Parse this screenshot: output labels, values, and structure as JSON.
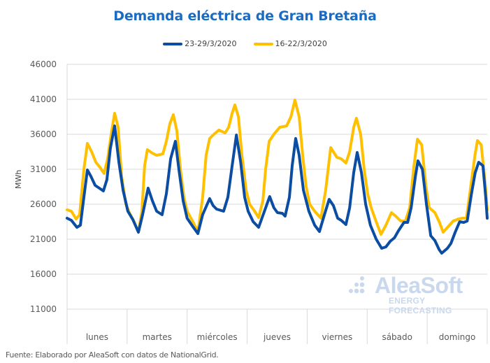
{
  "chart_data": {
    "type": "line",
    "title": "Demanda eléctrica de Gran Bretaña",
    "xlabel": "",
    "ylabel": "MWh",
    "ylim": [
      6000,
      46000
    ],
    "yticks": [
      11000,
      16000,
      21000,
      26000,
      31000,
      36000,
      41000,
      46000
    ],
    "ytick_labels": [
      "11000",
      "16000",
      "21000",
      "26000",
      "31000",
      "36000",
      "41000",
      "46000"
    ],
    "categories": [
      "lunes",
      "martes",
      "miércoles",
      "jueves",
      "viernes",
      "sábado",
      "domingo"
    ],
    "x_unit": "hour of week",
    "xlim": [
      0,
      168
    ],
    "grid": true,
    "legend_position": "top",
    "series": [
      {
        "name": "23-29/3/2020",
        "color": "#0b4da2",
        "points": [
          [
            0,
            24000
          ],
          [
            1.7,
            23700
          ],
          [
            3.9,
            22700
          ],
          [
            5.3,
            23000
          ],
          [
            6.7,
            27000
          ],
          [
            8.1,
            30900
          ],
          [
            9.5,
            30000
          ],
          [
            11.2,
            28700
          ],
          [
            12.9,
            28300
          ],
          [
            14.5,
            27900
          ],
          [
            15.9,
            29500
          ],
          [
            17.3,
            34000
          ],
          [
            19,
            37200
          ],
          [
            20.7,
            32000
          ],
          [
            22.4,
            28000
          ],
          [
            24.3,
            25000
          ],
          [
            26.3,
            23800
          ],
          [
            28.5,
            22000
          ],
          [
            30.2,
            24500
          ],
          [
            32.4,
            28300
          ],
          [
            34.1,
            26500
          ],
          [
            35.8,
            25000
          ],
          [
            38,
            24500
          ],
          [
            39.7,
            27500
          ],
          [
            41.4,
            32500
          ],
          [
            43.3,
            35000
          ],
          [
            44.7,
            31000
          ],
          [
            46.4,
            26500
          ],
          [
            48,
            24000
          ],
          [
            50.3,
            22800
          ],
          [
            52.3,
            21800
          ],
          [
            54.2,
            24500
          ],
          [
            57,
            26800
          ],
          [
            58.4,
            25800
          ],
          [
            59.8,
            25300
          ],
          [
            62.6,
            25000
          ],
          [
            64.3,
            27000
          ],
          [
            66,
            31500
          ],
          [
            67.7,
            35900
          ],
          [
            69.4,
            32000
          ],
          [
            71,
            27000
          ],
          [
            72.4,
            25000
          ],
          [
            74.4,
            23500
          ],
          [
            76.6,
            22700
          ],
          [
            78.9,
            25000
          ],
          [
            81,
            27100
          ],
          [
            82.7,
            25500
          ],
          [
            84.1,
            24800
          ],
          [
            86.1,
            24700
          ],
          [
            87.2,
            24300
          ],
          [
            88.9,
            27000
          ],
          [
            90,
            31500
          ],
          [
            91.4,
            35400
          ],
          [
            92.8,
            33000
          ],
          [
            94.5,
            28000
          ],
          [
            96.7,
            25000
          ],
          [
            99,
            23000
          ],
          [
            100.9,
            22100
          ],
          [
            102.9,
            24500
          ],
          [
            104.8,
            26700
          ],
          [
            106.5,
            25800
          ],
          [
            108.2,
            24000
          ],
          [
            109.6,
            23700
          ],
          [
            111.5,
            23100
          ],
          [
            113,
            25500
          ],
          [
            114.6,
            30500
          ],
          [
            116,
            33400
          ],
          [
            117.7,
            30500
          ],
          [
            119.4,
            26000
          ],
          [
            121.3,
            23000
          ],
          [
            123.6,
            21000
          ],
          [
            125.8,
            19700
          ],
          [
            127.5,
            19900
          ],
          [
            129.2,
            20700
          ],
          [
            130.9,
            21200
          ],
          [
            132.5,
            22200
          ],
          [
            134.7,
            23400
          ],
          [
            136.2,
            23400
          ],
          [
            137.6,
            25500
          ],
          [
            139.3,
            30000
          ],
          [
            140.3,
            32200
          ],
          [
            142.1,
            31000
          ],
          [
            143.7,
            26000
          ],
          [
            145.4,
            21500
          ],
          [
            147.1,
            20800
          ],
          [
            148.8,
            19500
          ],
          [
            149.8,
            19000
          ],
          [
            152.1,
            19700
          ],
          [
            153.5,
            20400
          ],
          [
            155.2,
            22000
          ],
          [
            157,
            23500
          ],
          [
            158.6,
            23400
          ],
          [
            160,
            23600
          ],
          [
            161.7,
            27500
          ],
          [
            163.2,
            30500
          ],
          [
            164.6,
            32000
          ],
          [
            166.3,
            31500
          ],
          [
            167.4,
            27000
          ],
          [
            168,
            24000
          ]
        ]
      },
      {
        "name": "16-22/3/2020",
        "color": "#ffc000",
        "points": [
          [
            0,
            25200
          ],
          [
            1.7,
            25000
          ],
          [
            3.6,
            23900
          ],
          [
            5,
            24500
          ],
          [
            6.7,
            31000
          ],
          [
            8.1,
            34700
          ],
          [
            9.8,
            33500
          ],
          [
            11.5,
            32000
          ],
          [
            13.1,
            31300
          ],
          [
            14.8,
            30400
          ],
          [
            16.2,
            32500
          ],
          [
            17.6,
            36000
          ],
          [
            19,
            39000
          ],
          [
            20.4,
            37000
          ],
          [
            21.8,
            30000
          ],
          [
            23.5,
            26000
          ],
          [
            24.9,
            24800
          ],
          [
            26.8,
            23500
          ],
          [
            28.5,
            22000
          ],
          [
            29.9,
            25000
          ],
          [
            31,
            31500
          ],
          [
            32.1,
            33800
          ],
          [
            34.1,
            33300
          ],
          [
            35.8,
            33000
          ],
          [
            38.3,
            33200
          ],
          [
            39.7,
            35000
          ],
          [
            41.1,
            37500
          ],
          [
            42.5,
            38800
          ],
          [
            43.9,
            36500
          ],
          [
            45.3,
            31000
          ],
          [
            46.7,
            27000
          ],
          [
            48,
            25000
          ],
          [
            50.3,
            23500
          ],
          [
            52.3,
            22000
          ],
          [
            54.2,
            27000
          ],
          [
            55.6,
            33000
          ],
          [
            57,
            35400
          ],
          [
            58.7,
            36000
          ],
          [
            60.7,
            36600
          ],
          [
            63.2,
            36200
          ],
          [
            64.6,
            37000
          ],
          [
            66,
            39000
          ],
          [
            67.1,
            40200
          ],
          [
            68.5,
            38500
          ],
          [
            69.9,
            33000
          ],
          [
            71.6,
            28000
          ],
          [
            73,
            26000
          ],
          [
            75,
            25000
          ],
          [
            76.6,
            24100
          ],
          [
            78.3,
            26500
          ],
          [
            79.4,
            31000
          ],
          [
            80.8,
            35000
          ],
          [
            82.7,
            36000
          ],
          [
            85,
            37000
          ],
          [
            87.8,
            37200
          ],
          [
            89.5,
            38500
          ],
          [
            91.1,
            40900
          ],
          [
            92.8,
            38500
          ],
          [
            94.2,
            33000
          ],
          [
            95.6,
            28500
          ],
          [
            97,
            26000
          ],
          [
            99,
            25000
          ],
          [
            101.5,
            24000
          ],
          [
            103.4,
            28000
          ],
          [
            105.4,
            34100
          ],
          [
            107.9,
            32700
          ],
          [
            109.6,
            32500
          ],
          [
            111.5,
            31900
          ],
          [
            113,
            33500
          ],
          [
            114.6,
            37000
          ],
          [
            115.7,
            38300
          ],
          [
            117.4,
            36000
          ],
          [
            118.8,
            31000
          ],
          [
            120.2,
            27500
          ],
          [
            121.6,
            25500
          ],
          [
            123.6,
            23500
          ],
          [
            125.5,
            21700
          ],
          [
            127.5,
            23000
          ],
          [
            129.7,
            24800
          ],
          [
            131.4,
            24300
          ],
          [
            133.4,
            23600
          ],
          [
            135.3,
            23600
          ],
          [
            137,
            25500
          ],
          [
            138.7,
            31500
          ],
          [
            140.1,
            35300
          ],
          [
            141.8,
            34500
          ],
          [
            143.5,
            28500
          ],
          [
            144.8,
            25500
          ],
          [
            147.1,
            24800
          ],
          [
            148.8,
            23500
          ],
          [
            150.4,
            22000
          ],
          [
            152.4,
            22800
          ],
          [
            154.4,
            23600
          ],
          [
            156.6,
            23900
          ],
          [
            158.2,
            24000
          ],
          [
            159.7,
            24000
          ],
          [
            161.4,
            28500
          ],
          [
            163.1,
            33000
          ],
          [
            164.1,
            35100
          ],
          [
            165.6,
            34500
          ],
          [
            167.2,
            29000
          ],
          [
            168,
            25200
          ]
        ]
      }
    ]
  },
  "legend": {
    "items": [
      {
        "label": "23-29/3/2020",
        "color": "#0b4da2"
      },
      {
        "label": "16-22/3/2020",
        "color": "#ffc000"
      }
    ]
  },
  "watermark": {
    "brand": "AleaSoft",
    "tagline": "ENERGY FORECASTING"
  },
  "footer": {
    "source": "Fuente: Elaborado por AleaSoft con datos de NationalGrid."
  }
}
